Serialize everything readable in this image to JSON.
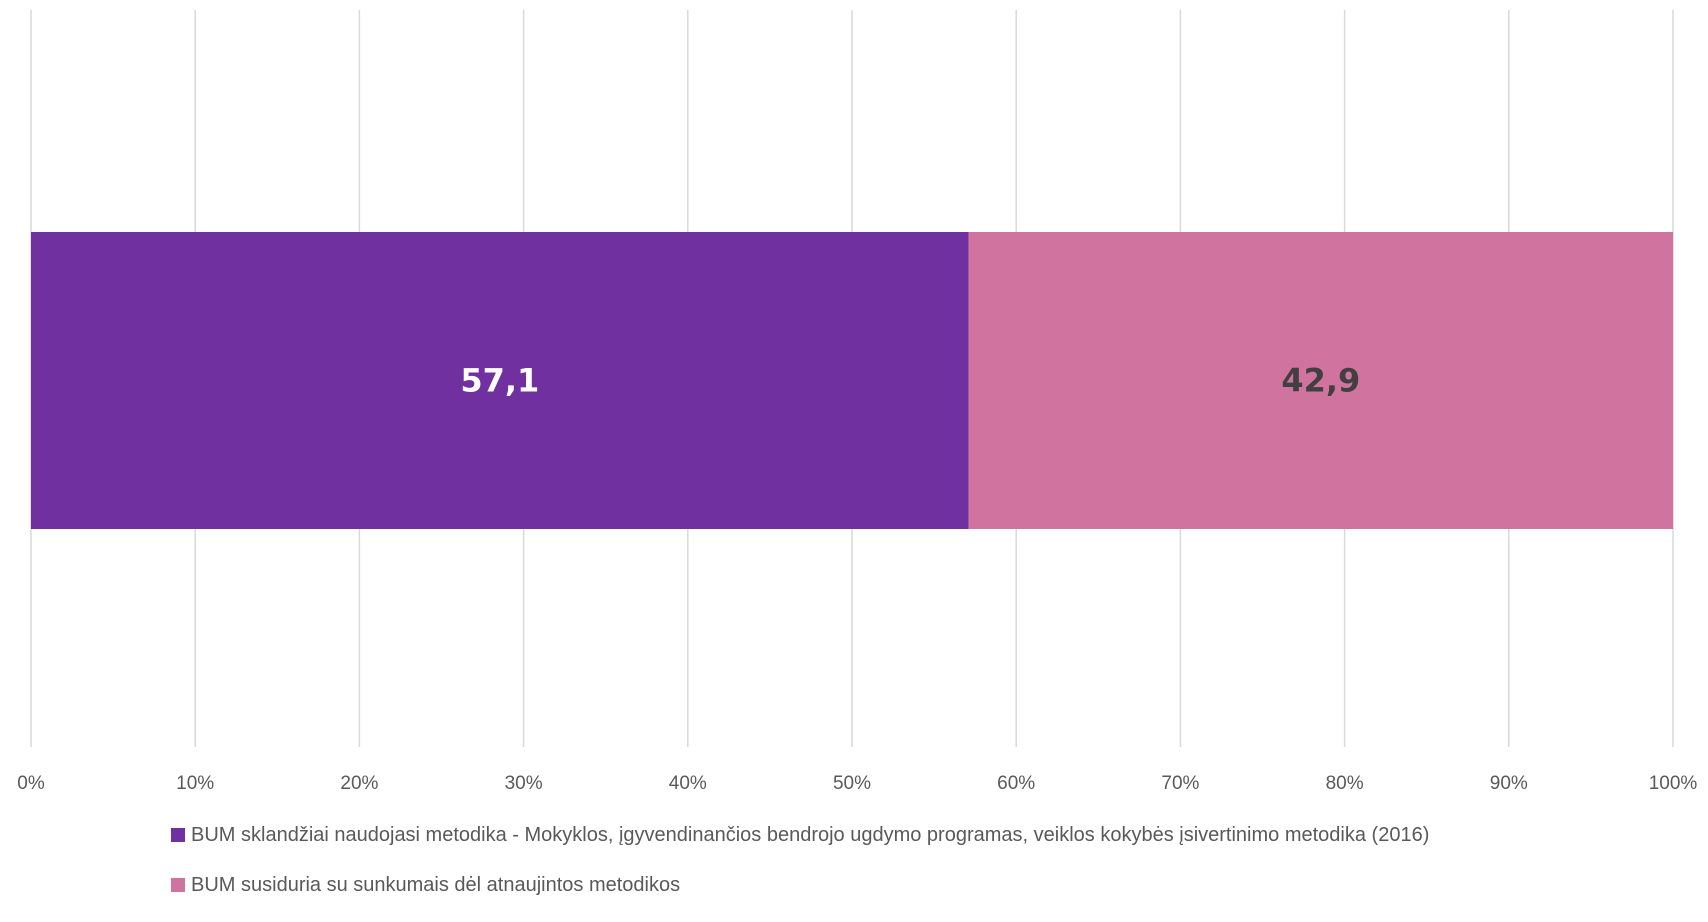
{
  "chart_data": {
    "type": "bar",
    "orientation": "horizontal",
    "stacked": "percent",
    "categories": [
      ""
    ],
    "series": [
      {
        "name": "BUM sklandžiai naudojasi metodika - Mokyklos, įgyvendinančios bendrojo ugdymo programas, veiklos kokybės įsivertinimo metodika (2016)",
        "values": [
          57.1
        ],
        "label": "57,1",
        "color": "#7030A0",
        "label_color": "#ffffff"
      },
      {
        "name": "BUM susiduria su sunkumais dėl atnaujintos metodikos",
        "values": [
          42.9
        ],
        "label": "42,9",
        "color": "#D0739E",
        "label_color": "#404040"
      }
    ],
    "xlim": [
      0,
      100
    ],
    "x_ticks": [
      "0%",
      "10%",
      "20%",
      "30%",
      "40%",
      "50%",
      "60%",
      "70%",
      "80%",
      "90%",
      "100%"
    ],
    "grid": true,
    "legend_position": "bottom"
  }
}
